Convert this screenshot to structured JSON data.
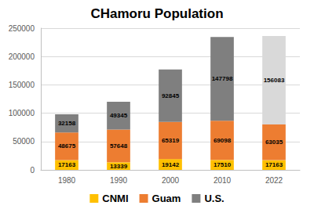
{
  "chart_data": {
    "type": "bar",
    "title": "CHamoru Population",
    "categories": [
      "1980",
      "1990",
      "2000",
      "2010",
      "2022"
    ],
    "series": [
      {
        "name": "CNMI",
        "color": "#FFC000",
        "values": [
          17163,
          13339,
          19142,
          17510,
          17163
        ]
      },
      {
        "name": "Guam",
        "color": "#ED7D31",
        "values": [
          48675,
          57648,
          65319,
          69098,
          63035
        ]
      },
      {
        "name": "U.S.",
        "color": "#7F7F7F",
        "colors": [
          "#7F7F7F",
          "#7F7F7F",
          "#7F7F7F",
          "#7F7F7F",
          "#D9D9D9"
        ],
        "values": [
          32158,
          49345,
          92845,
          147798,
          156083
        ]
      }
    ],
    "ylim": [
      0,
      250000
    ],
    "yticks": [
      0,
      50000,
      100000,
      150000,
      200000,
      250000
    ],
    "stacked": true,
    "data_labels": true,
    "grid": true,
    "legend": "bottom"
  }
}
